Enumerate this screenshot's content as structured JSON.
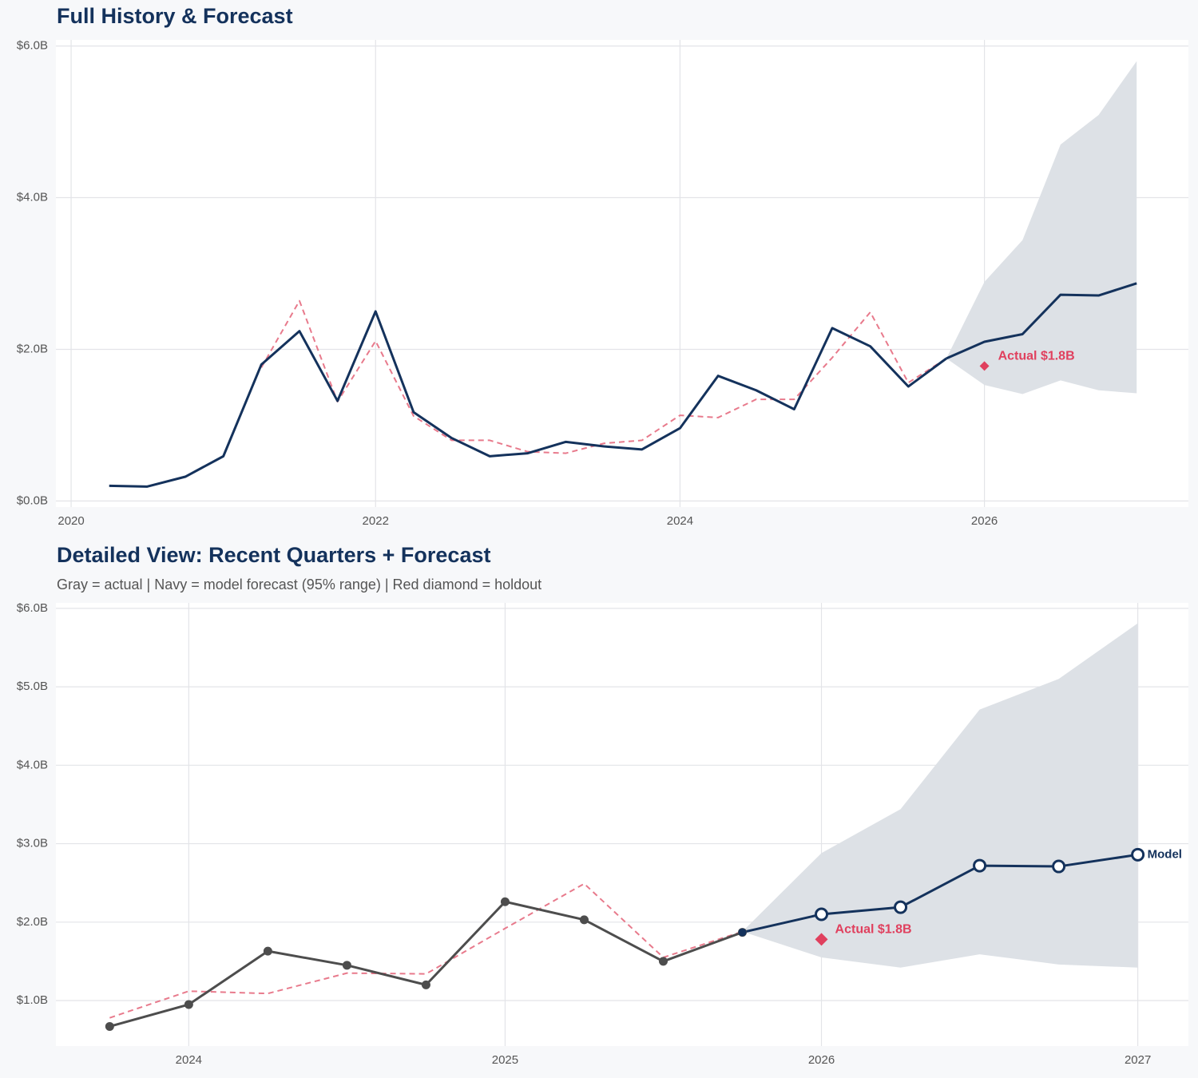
{
  "chart_data": [
    {
      "type": "line",
      "title": "Full History & Forecast",
      "xlim": [
        2019.9,
        2027.34
      ],
      "xticks": [
        2020,
        2022,
        2024,
        2026
      ],
      "ylim": [
        -0.08,
        6.08
      ],
      "yticks": [
        {
          "value": 0,
          "label": "$0.0B"
        },
        {
          "value": 2,
          "label": "$2.0B"
        },
        {
          "value": 4,
          "label": "$4.0B"
        },
        {
          "value": 6,
          "label": "$6.0B"
        }
      ],
      "grid": true,
      "band": {
        "color": "#dde1e6",
        "x": [
          2025.75,
          2026,
          2026.25,
          2026.5,
          2026.75,
          2027
        ],
        "lower": [
          1.88,
          1.53,
          1.41,
          1.59,
          1.46,
          1.42
        ],
        "upper": [
          1.88,
          2.89,
          3.44,
          4.7,
          5.09,
          5.8
        ]
      },
      "series": [
        {
          "color": "#e87a8c",
          "dash": true,
          "x": [
            2021.25,
            2021.5,
            2021.75,
            2022,
            2022.25,
            2022.5,
            2022.75,
            2023,
            2023.25,
            2023.5,
            2023.75,
            2024,
            2024.25,
            2024.5,
            2024.75,
            2025,
            2025.25,
            2025.5,
            2025.75
          ],
          "values": [
            1.76,
            2.64,
            1.31,
            2.11,
            1.12,
            0.8,
            0.8,
            0.65,
            0.63,
            0.76,
            0.8,
            1.13,
            1.1,
            1.34,
            1.34,
            1.89,
            2.49,
            1.56,
            1.88
          ]
        },
        {
          "color": "#14325c",
          "x": [
            2020.25,
            2020.5,
            2020.75,
            2021,
            2021.25,
            2021.5,
            2021.75,
            2022,
            2022.25,
            2022.5,
            2022.75,
            2023,
            2023.25,
            2023.5,
            2023.75,
            2024,
            2024.25,
            2024.5,
            2024.75,
            2025,
            2025.25,
            2025.5,
            2025.75
          ],
          "values": [
            0.2,
            0.19,
            0.32,
            0.59,
            1.8,
            2.24,
            1.32,
            2.5,
            1.17,
            0.83,
            0.59,
            0.63,
            0.78,
            0.72,
            0.68,
            0.96,
            1.65,
            1.46,
            1.21,
            2.28,
            2.04,
            1.51,
            1.88
          ]
        },
        {
          "color": "#14325c",
          "x": [
            2025.75,
            2026,
            2026.25,
            2026.5,
            2026.75,
            2027
          ],
          "values": [
            1.88,
            2.1,
            2.2,
            2.72,
            2.71,
            2.87
          ]
        }
      ],
      "annotations": [
        {
          "x": 2026,
          "value": 1.78,
          "label": "Actual $1.8B",
          "color": "#e0405e"
        }
      ]
    },
    {
      "type": "line",
      "title": "Detailed View: Recent Quarters + Forecast",
      "subtitle": "Gray = actual  |  Navy = model forecast (95% range)  |  Red diamond = holdout",
      "xlim": [
        2023.58,
        2027.16
      ],
      "xticks": [
        2024,
        2025,
        2026,
        2027
      ],
      "ylim": [
        0.42,
        6.07
      ],
      "yticks": [
        {
          "value": 1,
          "label": "$1.0B"
        },
        {
          "value": 2,
          "label": "$2.0B"
        },
        {
          "value": 3,
          "label": "$3.0B"
        },
        {
          "value": 4,
          "label": "$4.0B"
        },
        {
          "value": 5,
          "label": "$5.0B"
        },
        {
          "value": 6,
          "label": "$6.0B"
        }
      ],
      "grid": true,
      "band": {
        "color": "#dde1e6",
        "x": [
          2025.75,
          2026,
          2026.25,
          2026.5,
          2026.75,
          2027
        ],
        "lower": [
          1.88,
          1.55,
          1.42,
          1.59,
          1.46,
          1.42
        ],
        "upper": [
          1.88,
          2.88,
          3.44,
          4.71,
          5.1,
          5.81
        ]
      },
      "series": [
        {
          "color": "#e87a8c",
          "dash": true,
          "x": [
            2023.75,
            2024,
            2024.25,
            2024.5,
            2024.75,
            2025,
            2025.25,
            2025.5,
            2025.75
          ],
          "values": [
            0.78,
            1.12,
            1.09,
            1.35,
            1.34,
            1.92,
            2.49,
            1.55,
            1.88
          ]
        },
        {
          "color": "#4d4d4d",
          "markers": true,
          "x": [
            2023.75,
            2024,
            2024.25,
            2024.5,
            2024.75,
            2025,
            2025.25,
            2025.5,
            2025.75
          ],
          "values": [
            0.67,
            0.95,
            1.63,
            1.45,
            1.2,
            2.26,
            2.03,
            1.5,
            1.87
          ]
        },
        {
          "name": "Model",
          "color": "#14325c",
          "markers": true,
          "hollow": true,
          "x": [
            2025.75,
            2026,
            2026.25,
            2026.5,
            2026.75,
            2027
          ],
          "values": [
            1.87,
            2.1,
            2.19,
            2.72,
            2.71,
            2.86
          ]
        }
      ],
      "annotations": [
        {
          "x": 2026,
          "value": 1.78,
          "label": "Actual $1.8B",
          "color": "#e0405e"
        }
      ]
    }
  ]
}
